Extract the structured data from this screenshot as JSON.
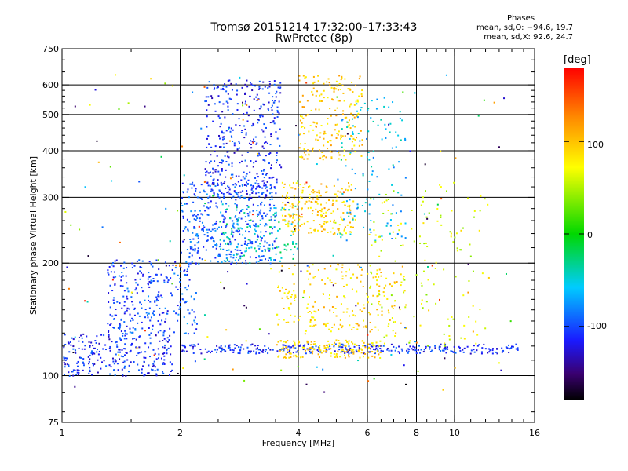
{
  "chart_data": {
    "type": "scatter",
    "title": "Tromsø 20151214 17:32:00–17:33:43",
    "subtitle": "RwPretec (8p)",
    "xlabel": "Frequency [MHz]",
    "ylabel": "Stationary phase Virtual Height [km]",
    "x_scale": "log",
    "y_scale": "log",
    "xlim": [
      1,
      16
    ],
    "ylim": [
      75,
      750
    ],
    "x_ticks": [
      1,
      2,
      4,
      6,
      8,
      10,
      16
    ],
    "y_ticks": [
      75,
      100,
      200,
      300,
      400,
      500,
      600,
      750
    ],
    "x_grid": [
      2,
      4,
      6,
      8,
      10
    ],
    "y_grid": [
      100,
      200,
      300,
      400,
      500,
      600
    ],
    "grid": true,
    "stats": {
      "header": "Phases",
      "line_o": "mean, sd,O: −94.6, 19.7",
      "line_x": "mean, sd,X:  92.6, 24.7"
    },
    "colorbar": {
      "label": "[deg]",
      "range": [
        -180,
        180
      ],
      "ticks": [
        100,
        0,
        -100
      ]
    },
    "clusters": [
      {
        "x": [
          1.0,
          1.9
        ],
        "y": [
          100,
          130
        ],
        "phase": -110,
        "n": 260,
        "note": "low band E-region traces"
      },
      {
        "x": [
          1.3,
          2.2
        ],
        "y": [
          130,
          205
        ],
        "phase": -100,
        "n": 280
      },
      {
        "x": [
          2.0,
          3.5
        ],
        "y": [
          200,
          330
        ],
        "phase": -95,
        "n": 420
      },
      {
        "x": [
          2.3,
          3.6
        ],
        "y": [
          300,
          620
        ],
        "phase": -110,
        "n": 380
      },
      {
        "x": [
          2.5,
          4.0
        ],
        "y": [
          200,
          290
        ],
        "phase": -40,
        "n": 120
      },
      {
        "x": [
          3.6,
          5.6
        ],
        "y": [
          240,
          330
        ],
        "phase": 95,
        "n": 220
      },
      {
        "x": [
          4.0,
          5.8
        ],
        "y": [
          380,
          640
        ],
        "phase": 95,
        "n": 200
      },
      {
        "x": [
          3.5,
          7.5
        ],
        "y": [
          130,
          200
        ],
        "phase": 90,
        "n": 220
      },
      {
        "x": [
          5.0,
          7.5
        ],
        "y": [
          230,
          560
        ],
        "phase": -60,
        "n": 120
      },
      {
        "x": [
          2.0,
          14.5
        ],
        "y": [
          115,
          122
        ],
        "phase": -110,
        "n": 320,
        "note": "flat E trace"
      },
      {
        "x": [
          3.5,
          6.5
        ],
        "y": [
          112,
          125
        ],
        "phase": 90,
        "n": 160
      },
      {
        "x": [
          6.0,
          12.0
        ],
        "y": [
          120,
          330
        ],
        "phase": 60,
        "n": 140
      },
      {
        "x": [
          1.0,
          14.0
        ],
        "y": [
          90,
          650
        ],
        "phase": 0,
        "n": 180,
        "note": "scattered noise"
      }
    ]
  }
}
